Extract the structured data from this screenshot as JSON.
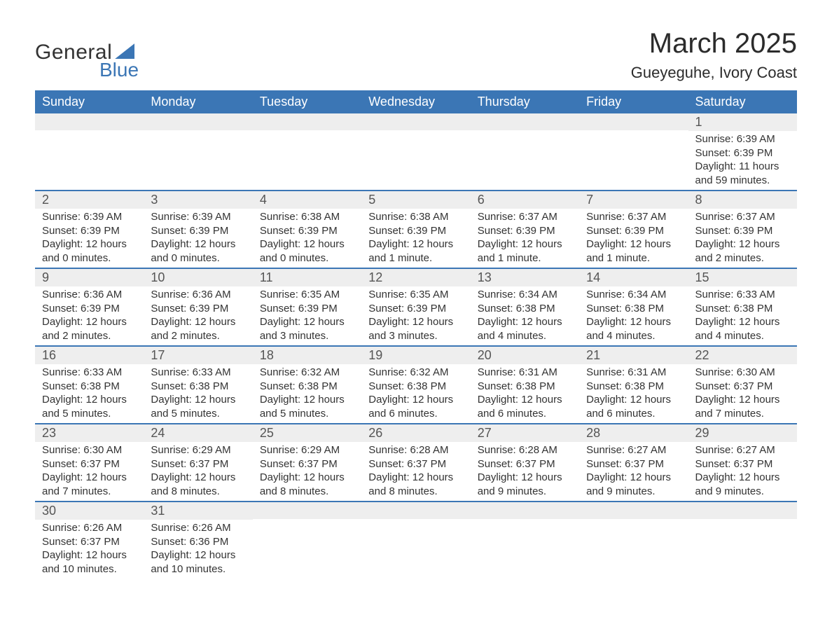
{
  "logo": {
    "word1": "General",
    "word2": "Blue"
  },
  "title": "March 2025",
  "location": "Gueyeguhe, Ivory Coast",
  "colors": {
    "brand_blue": "#3b76b5",
    "header_text": "#ffffff",
    "row_stripe": "#eeeeee",
    "text": "#333333",
    "background": "#ffffff"
  },
  "layout": {
    "columns": 7,
    "rows": 6,
    "table_type": "calendar"
  },
  "weekdays": [
    "Sunday",
    "Monday",
    "Tuesday",
    "Wednesday",
    "Thursday",
    "Friday",
    "Saturday"
  ],
  "weeks": [
    [
      {
        "n": "",
        "sr": "",
        "ss": "",
        "dl": ""
      },
      {
        "n": "",
        "sr": "",
        "ss": "",
        "dl": ""
      },
      {
        "n": "",
        "sr": "",
        "ss": "",
        "dl": ""
      },
      {
        "n": "",
        "sr": "",
        "ss": "",
        "dl": ""
      },
      {
        "n": "",
        "sr": "",
        "ss": "",
        "dl": ""
      },
      {
        "n": "",
        "sr": "",
        "ss": "",
        "dl": ""
      },
      {
        "n": "1",
        "sr": "Sunrise: 6:39 AM",
        "ss": "Sunset: 6:39 PM",
        "dl": "Daylight: 11 hours and 59 minutes."
      }
    ],
    [
      {
        "n": "2",
        "sr": "Sunrise: 6:39 AM",
        "ss": "Sunset: 6:39 PM",
        "dl": "Daylight: 12 hours and 0 minutes."
      },
      {
        "n": "3",
        "sr": "Sunrise: 6:39 AM",
        "ss": "Sunset: 6:39 PM",
        "dl": "Daylight: 12 hours and 0 minutes."
      },
      {
        "n": "4",
        "sr": "Sunrise: 6:38 AM",
        "ss": "Sunset: 6:39 PM",
        "dl": "Daylight: 12 hours and 0 minutes."
      },
      {
        "n": "5",
        "sr": "Sunrise: 6:38 AM",
        "ss": "Sunset: 6:39 PM",
        "dl": "Daylight: 12 hours and 1 minute."
      },
      {
        "n": "6",
        "sr": "Sunrise: 6:37 AM",
        "ss": "Sunset: 6:39 PM",
        "dl": "Daylight: 12 hours and 1 minute."
      },
      {
        "n": "7",
        "sr": "Sunrise: 6:37 AM",
        "ss": "Sunset: 6:39 PM",
        "dl": "Daylight: 12 hours and 1 minute."
      },
      {
        "n": "8",
        "sr": "Sunrise: 6:37 AM",
        "ss": "Sunset: 6:39 PM",
        "dl": "Daylight: 12 hours and 2 minutes."
      }
    ],
    [
      {
        "n": "9",
        "sr": "Sunrise: 6:36 AM",
        "ss": "Sunset: 6:39 PM",
        "dl": "Daylight: 12 hours and 2 minutes."
      },
      {
        "n": "10",
        "sr": "Sunrise: 6:36 AM",
        "ss": "Sunset: 6:39 PM",
        "dl": "Daylight: 12 hours and 2 minutes."
      },
      {
        "n": "11",
        "sr": "Sunrise: 6:35 AM",
        "ss": "Sunset: 6:39 PM",
        "dl": "Daylight: 12 hours and 3 minutes."
      },
      {
        "n": "12",
        "sr": "Sunrise: 6:35 AM",
        "ss": "Sunset: 6:39 PM",
        "dl": "Daylight: 12 hours and 3 minutes."
      },
      {
        "n": "13",
        "sr": "Sunrise: 6:34 AM",
        "ss": "Sunset: 6:38 PM",
        "dl": "Daylight: 12 hours and 4 minutes."
      },
      {
        "n": "14",
        "sr": "Sunrise: 6:34 AM",
        "ss": "Sunset: 6:38 PM",
        "dl": "Daylight: 12 hours and 4 minutes."
      },
      {
        "n": "15",
        "sr": "Sunrise: 6:33 AM",
        "ss": "Sunset: 6:38 PM",
        "dl": "Daylight: 12 hours and 4 minutes."
      }
    ],
    [
      {
        "n": "16",
        "sr": "Sunrise: 6:33 AM",
        "ss": "Sunset: 6:38 PM",
        "dl": "Daylight: 12 hours and 5 minutes."
      },
      {
        "n": "17",
        "sr": "Sunrise: 6:33 AM",
        "ss": "Sunset: 6:38 PM",
        "dl": "Daylight: 12 hours and 5 minutes."
      },
      {
        "n": "18",
        "sr": "Sunrise: 6:32 AM",
        "ss": "Sunset: 6:38 PM",
        "dl": "Daylight: 12 hours and 5 minutes."
      },
      {
        "n": "19",
        "sr": "Sunrise: 6:32 AM",
        "ss": "Sunset: 6:38 PM",
        "dl": "Daylight: 12 hours and 6 minutes."
      },
      {
        "n": "20",
        "sr": "Sunrise: 6:31 AM",
        "ss": "Sunset: 6:38 PM",
        "dl": "Daylight: 12 hours and 6 minutes."
      },
      {
        "n": "21",
        "sr": "Sunrise: 6:31 AM",
        "ss": "Sunset: 6:38 PM",
        "dl": "Daylight: 12 hours and 6 minutes."
      },
      {
        "n": "22",
        "sr": "Sunrise: 6:30 AM",
        "ss": "Sunset: 6:37 PM",
        "dl": "Daylight: 12 hours and 7 minutes."
      }
    ],
    [
      {
        "n": "23",
        "sr": "Sunrise: 6:30 AM",
        "ss": "Sunset: 6:37 PM",
        "dl": "Daylight: 12 hours and 7 minutes."
      },
      {
        "n": "24",
        "sr": "Sunrise: 6:29 AM",
        "ss": "Sunset: 6:37 PM",
        "dl": "Daylight: 12 hours and 8 minutes."
      },
      {
        "n": "25",
        "sr": "Sunrise: 6:29 AM",
        "ss": "Sunset: 6:37 PM",
        "dl": "Daylight: 12 hours and 8 minutes."
      },
      {
        "n": "26",
        "sr": "Sunrise: 6:28 AM",
        "ss": "Sunset: 6:37 PM",
        "dl": "Daylight: 12 hours and 8 minutes."
      },
      {
        "n": "27",
        "sr": "Sunrise: 6:28 AM",
        "ss": "Sunset: 6:37 PM",
        "dl": "Daylight: 12 hours and 9 minutes."
      },
      {
        "n": "28",
        "sr": "Sunrise: 6:27 AM",
        "ss": "Sunset: 6:37 PM",
        "dl": "Daylight: 12 hours and 9 minutes."
      },
      {
        "n": "29",
        "sr": "Sunrise: 6:27 AM",
        "ss": "Sunset: 6:37 PM",
        "dl": "Daylight: 12 hours and 9 minutes."
      }
    ],
    [
      {
        "n": "30",
        "sr": "Sunrise: 6:26 AM",
        "ss": "Sunset: 6:37 PM",
        "dl": "Daylight: 12 hours and 10 minutes."
      },
      {
        "n": "31",
        "sr": "Sunrise: 6:26 AM",
        "ss": "Sunset: 6:36 PM",
        "dl": "Daylight: 12 hours and 10 minutes."
      },
      {
        "n": "",
        "sr": "",
        "ss": "",
        "dl": ""
      },
      {
        "n": "",
        "sr": "",
        "ss": "",
        "dl": ""
      },
      {
        "n": "",
        "sr": "",
        "ss": "",
        "dl": ""
      },
      {
        "n": "",
        "sr": "",
        "ss": "",
        "dl": ""
      },
      {
        "n": "",
        "sr": "",
        "ss": "",
        "dl": ""
      }
    ]
  ]
}
